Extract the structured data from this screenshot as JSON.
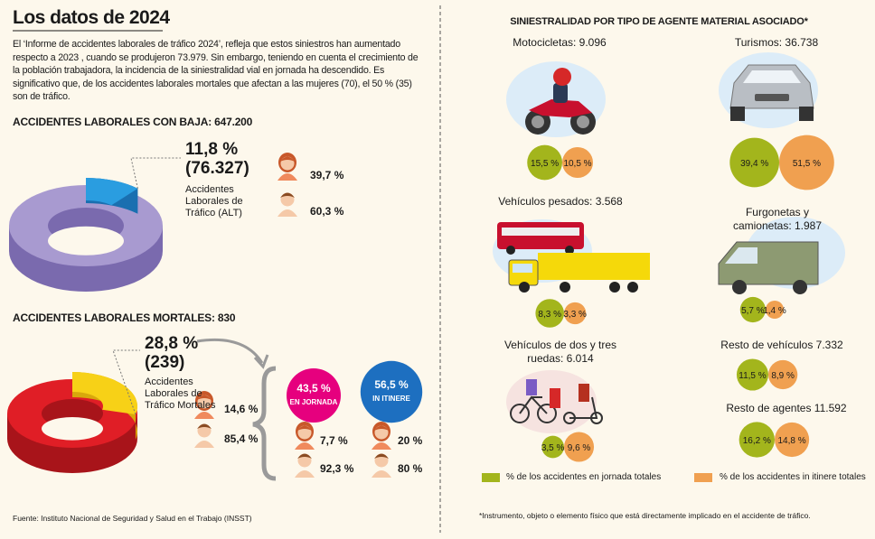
{
  "left": {
    "title": "Los datos de 2024",
    "intro": "El ‘Informe de accidentes laborales de tráfico 2024’, refleja que estos siniestros han aumentado respecto a 2023 , cuando se produjeron 73.979. Sin embargo, teniendo en cuenta el crecimiento de la población trabajadora, la incidencia de la siniestralidad vial en jornada ha descendido. Es significativo que, de los accidentes laborales mortales que afectan a las mujeres (70), el 50 % (35) son de tráfico.",
    "baja": {
      "heading": "ACCIDENTES LABORALES CON BAJA: 647.200",
      "share": {
        "value": 11.8,
        "label": "11,8 %"
      },
      "count": "(76.327)",
      "description": "Accidentes Laborales de Tráfico (ALT)",
      "women": "39,7 %",
      "men": "60,3 %"
    },
    "mortales": {
      "heading": "ACCIDENTES LABORALES MORTALES: 830",
      "share": {
        "value": 28.8,
        "label": "28,8 %"
      },
      "count": "(239)",
      "description": "Accidentes Laborales de Tráfico Mortales",
      "women": "14,6 %",
      "men": "85,4 %",
      "jornada": {
        "value": 43.5,
        "label": "43,5 %",
        "caption": "EN JORNADA",
        "women": "7,7 %",
        "men": "92,3 %"
      },
      "itinere": {
        "value": 56.5,
        "label": "56,5 %",
        "caption": "IN ITINERE",
        "women": "20 %",
        "men": "80 %"
      }
    },
    "source": "Fuente: Instituto Nacional de Seguridad y Salud en el Trabajo (INSST)"
  },
  "right": {
    "title": "SINIESTRALIDAD POR TIPO DE AGENTE MATERIAL ASOCIADO*",
    "agents": [
      {
        "name": "Motocicletas: 9.096",
        "jornada": {
          "value": 15.5,
          "label": "15,5 %"
        },
        "itinere": {
          "value": 10.5,
          "label": "10,5 %"
        }
      },
      {
        "name": "Turismos: 36.738",
        "jornada": {
          "value": 39.4,
          "label": "39,4 %"
        },
        "itinere": {
          "value": 51.5,
          "label": "51,5 %"
        }
      },
      {
        "name": "Vehículos pesados: 3.568",
        "jornada": {
          "value": 8.3,
          "label": "8,3 %"
        },
        "itinere": {
          "value": 3.3,
          "label": "3,3 %"
        }
      },
      {
        "name": "Furgonetas y camionetas: 1.987",
        "jornada": {
          "value": 5.7,
          "label": "5,7 %"
        },
        "itinere": {
          "value": 1.4,
          "label": "1,4 %"
        }
      },
      {
        "name": "Vehículos de dos y tres ruedas: 6.014",
        "jornada": {
          "value": 3.5,
          "label": "3,5 %"
        },
        "itinere": {
          "value": 9.6,
          "label": "9,6 %"
        }
      },
      {
        "name": "Resto de vehículos 7.332",
        "jornada": {
          "value": 11.5,
          "label": "11,5 %"
        },
        "itinere": {
          "value": 8.9,
          "label": "8,9 %"
        }
      },
      {
        "name": "Resto de agentes 11.592",
        "jornada": {
          "value": 16.2,
          "label": "16,2 %"
        },
        "itinere": {
          "value": 14.8,
          "label": "14,8 %"
        }
      }
    ],
    "legend": {
      "jornada": "% de los accidentes en jornada totales",
      "itinere": "% de los accidentes in itinere totales"
    },
    "footnote": "*Instrumento, objeto o elemento físico que está directamente implicado en el accidente de tráfico."
  }
}
